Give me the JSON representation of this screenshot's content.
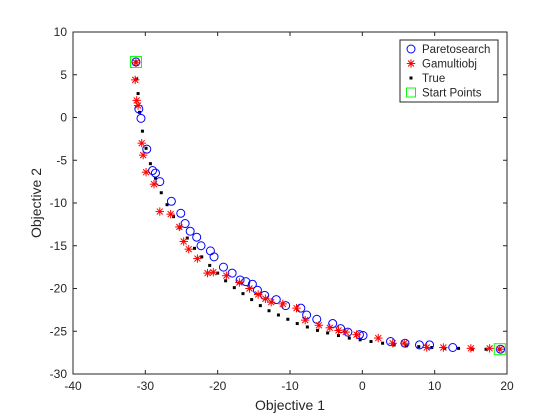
{
  "chart_data": {
    "type": "scatter",
    "title": "",
    "xlabel": "Objective 1",
    "ylabel": "Objective 2",
    "xlim": [
      -40,
      20
    ],
    "ylim": [
      -30,
      10
    ],
    "xticks": [
      -40,
      -30,
      -20,
      -10,
      0,
      10,
      20
    ],
    "yticks": [
      10,
      5,
      0,
      -5,
      -10,
      -15,
      -20,
      -25,
      -30
    ],
    "grid": false,
    "legend_position": "top-right",
    "series": [
      {
        "name": "Paretosearch",
        "marker": "circle",
        "color": "#0000ff",
        "x": [
          -31.3,
          -30.9,
          -30.6,
          -29.8,
          -29.0,
          -28.6,
          -28.0,
          -26.4,
          -25.1,
          -24.5,
          -23.8,
          -22.9,
          -22.3,
          -21.0,
          -20.5,
          -19.2,
          -18.0,
          -16.9,
          -16.1,
          -15.2,
          -14.5,
          -13.5,
          -11.9,
          -10.6,
          -8.5,
          -7.7,
          -6.3,
          -4.1,
          -3.0,
          -2.0,
          -0.4,
          0.1,
          3.9,
          5.9,
          7.9,
          9.3,
          12.5,
          19.1
        ],
        "y": [
          6.5,
          1.0,
          -0.1,
          -3.7,
          -6.2,
          -6.5,
          -7.5,
          -9.8,
          -11.2,
          -12.4,
          -13.3,
          -14.0,
          -15.0,
          -15.6,
          -16.3,
          -17.5,
          -18.2,
          -19.0,
          -19.2,
          -19.5,
          -20.2,
          -20.8,
          -21.3,
          -22.0,
          -22.3,
          -23.1,
          -23.6,
          -24.1,
          -24.7,
          -25.1,
          -25.4,
          -25.5,
          -26.2,
          -26.4,
          -26.6,
          -26.6,
          -26.9,
          -27.1
        ]
      },
      {
        "name": "Gamultiobj",
        "marker": "asterisk",
        "color": "#ff0000",
        "x": [
          -31.3,
          -31.4,
          -31.2,
          -31.0,
          -30.5,
          -30.3,
          -29.9,
          -28.8,
          -28.0,
          -26.5,
          -25.3,
          -24.7,
          -24.0,
          -22.8,
          -21.4,
          -20.6,
          -18.8,
          -17.0,
          -15.6,
          -14.4,
          -13.4,
          -12.6,
          -11.0,
          -9.1,
          -7.9,
          -6.0,
          -4.5,
          -3.3,
          -2.3,
          -0.8,
          2.2,
          4.2,
          5.8,
          8.9,
          11.2,
          15.0,
          17.6,
          19.0
        ],
        "y": [
          6.4,
          4.4,
          2.0,
          1.4,
          -3.0,
          -4.4,
          -6.4,
          -7.8,
          -11.0,
          -11.3,
          -12.8,
          -14.5,
          -15.4,
          -16.5,
          -18.2,
          -18.1,
          -18.5,
          -19.3,
          -20.0,
          -20.7,
          -21.2,
          -21.6,
          -21.8,
          -22.3,
          -23.7,
          -24.3,
          -24.6,
          -24.9,
          -25.1,
          -25.4,
          -25.8,
          -26.4,
          -26.4,
          -26.9,
          -26.9,
          -27.0,
          -27.0,
          -27.1
        ]
      },
      {
        "name": "True",
        "marker": "square-dot",
        "color": "#000000",
        "x": [
          -31.3,
          -31.2,
          -31.0,
          -30.8,
          -30.4,
          -29.9,
          -29.3,
          -28.6,
          -27.8,
          -27.0,
          -26.1,
          -25.2,
          -24.2,
          -23.2,
          -22.2,
          -21.1,
          -20.0,
          -18.9,
          -17.7,
          -16.5,
          -15.3,
          -14.1,
          -12.9,
          -11.6,
          -10.3,
          -9.0,
          -7.6,
          -6.2,
          -4.8,
          -3.3,
          -1.8,
          -0.3,
          1.2,
          2.8,
          4.4,
          6.1,
          7.8,
          9.6,
          11.4,
          13.3,
          15.2,
          17.1,
          19.0
        ],
        "y": [
          6.5,
          4.5,
          2.8,
          0.6,
          -1.6,
          -3.6,
          -5.4,
          -7.1,
          -8.8,
          -10.2,
          -11.6,
          -12.9,
          -14.1,
          -15.3,
          -16.3,
          -17.3,
          -18.2,
          -19.1,
          -19.9,
          -20.6,
          -21.3,
          -22.0,
          -22.6,
          -23.1,
          -23.6,
          -24.1,
          -24.5,
          -24.9,
          -25.2,
          -25.5,
          -25.8,
          -26.0,
          -26.2,
          -26.4,
          -26.6,
          -26.7,
          -26.8,
          -26.9,
          -27.0,
          -27.0,
          -27.1,
          -27.1,
          -27.1
        ]
      },
      {
        "name": "Start Points",
        "marker": "square",
        "color": "#00ff00",
        "x": [
          -31.3,
          19.0
        ],
        "y": [
          6.5,
          -27.1
        ]
      }
    ]
  }
}
